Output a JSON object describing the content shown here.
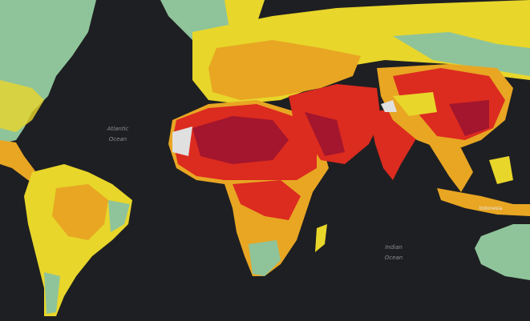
{
  "labels": [
    {
      "lines": [
        "Atlantic",
        "Ocean"
      ]
    },
    {
      "lines": [
        "Indian",
        "Ocean"
      ]
    },
    {
      "lines": [
        "Indonesia"
      ]
    }
  ]
}
